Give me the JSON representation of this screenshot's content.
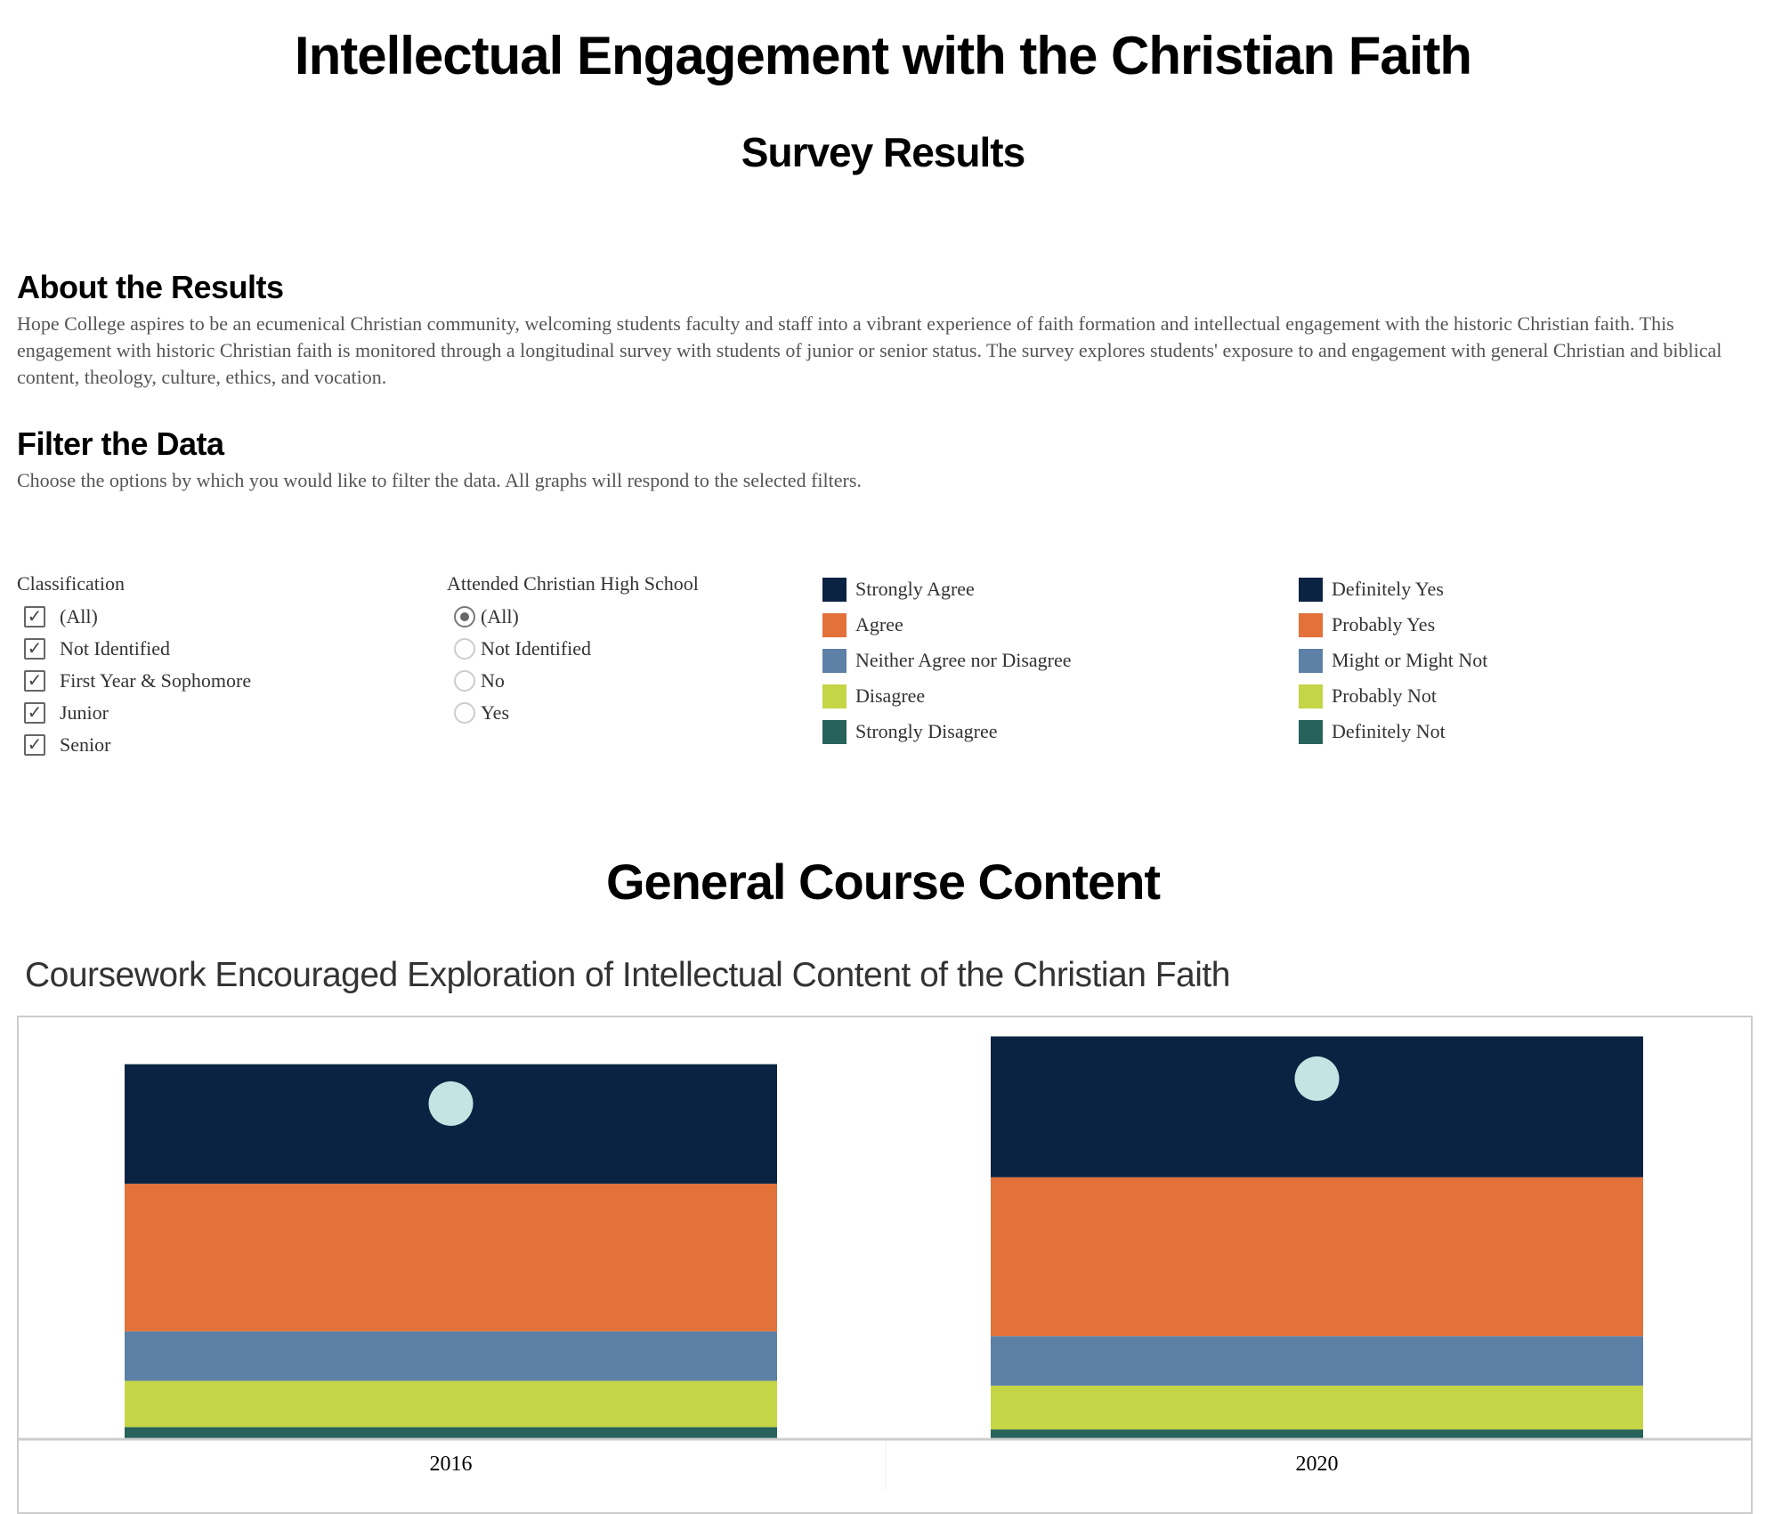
{
  "header": {
    "title": "Intellectual Engagement with the Christian Faith",
    "subtitle": "Survey Results"
  },
  "about": {
    "heading": "About the Results",
    "text": "Hope College aspires to be an ecumenical Christian community, welcoming students faculty and staff into a vibrant experience of faith formation and intellectual engagement with the historic Christian faith.  This engagement with historic Christian faith is monitored through a longitudinal survey with students of junior or senior status.  The survey explores students' exposure to and engagement with general Christian and biblical content, theology, culture, ethics, and vocation."
  },
  "filter": {
    "heading": "Filter the Data",
    "text": "Choose the options by which you would like to filter the data.  All graphs will respond to the selected filters.",
    "classification": {
      "label": "Classification",
      "options": [
        {
          "label": "(All)",
          "checked": true
        },
        {
          "label": "Not Identified",
          "checked": true
        },
        {
          "label": "First Year & Sophomore",
          "checked": true
        },
        {
          "label": "Junior",
          "checked": true
        },
        {
          "label": "Senior",
          "checked": true
        }
      ]
    },
    "christian_hs": {
      "label": "Attended Christian High School",
      "options": [
        {
          "label": "(All)",
          "selected": true
        },
        {
          "label": "Not Identified",
          "selected": false
        },
        {
          "label": "No",
          "selected": false
        },
        {
          "label": "Yes",
          "selected": false
        }
      ]
    }
  },
  "legend_agree": [
    {
      "label": "Strongly Agree",
      "color": "#0a2342"
    },
    {
      "label": "Agree",
      "color": "#e3713a"
    },
    {
      "label": "Neither Agree nor Disagree",
      "color": "#5c80a6"
    },
    {
      "label": "Disagree",
      "color": "#c4d545"
    },
    {
      "label": "Strongly Disagree",
      "color": "#27635a"
    }
  ],
  "legend_yes": [
    {
      "label": "Definitely Yes",
      "color": "#0a2342"
    },
    {
      "label": "Probably Yes",
      "color": "#e3713a"
    },
    {
      "label": "Might or Might Not",
      "color": "#5c80a6"
    },
    {
      "label": "Probably Not",
      "color": "#c4d545"
    },
    {
      "label": "Definitely Not",
      "color": "#27635a"
    }
  ],
  "section": {
    "heading": "General Course Content"
  },
  "chart_data": {
    "type": "bar",
    "stacked": true,
    "title": "Coursework Encouraged Exploration of Intellectual Content of the Christian Faith",
    "categories": [
      "2016",
      "2020"
    ],
    "series": [
      {
        "name": "Strongly Disagree",
        "color": "#27635a",
        "values": [
          2.8,
          2.2
        ]
      },
      {
        "name": "Disagree",
        "color": "#c4d545",
        "values": [
          11.5,
          10.9
        ]
      },
      {
        "name": "Neither Agree nor Disagree",
        "color": "#5c80a6",
        "values": [
          12.3,
          12.3
        ]
      },
      {
        "name": "Agree",
        "color": "#e3713a",
        "values": [
          36.7,
          39.5
        ]
      },
      {
        "name": "Strongly Agree",
        "color": "#0a2342",
        "values": [
          29.7,
          35.0
        ]
      }
    ],
    "marker_color": "#c3e4e2",
    "ylim": [
      0,
      105
    ],
    "grid": false,
    "xlabel": "",
    "ylabel": ""
  }
}
